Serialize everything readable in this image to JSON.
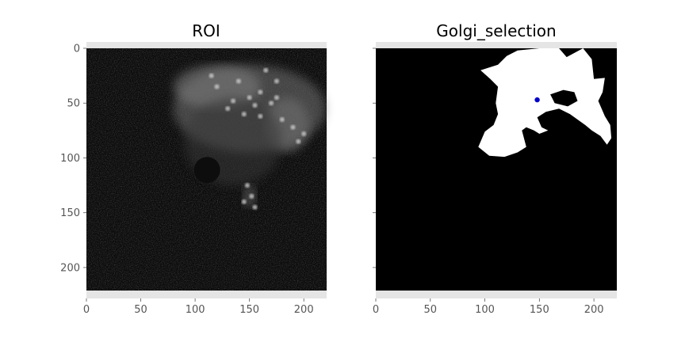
{
  "chart_data": [
    {
      "type": "heatmap",
      "title": "ROI",
      "colormap": "gray",
      "image_size": [
        221,
        221
      ],
      "xlim": [
        0,
        221
      ],
      "ylim": [
        221,
        0
      ],
      "xticks": [
        0,
        50,
        100,
        150,
        200
      ],
      "yticks": [
        0,
        50,
        100,
        150,
        200
      ],
      "dark_spot": {
        "x": 111,
        "y": 111,
        "r": 12
      },
      "bright_regions": [
        {
          "x": 150,
          "y": 55,
          "rx": 70,
          "ry": 40,
          "intensity": 0.45
        },
        {
          "x": 120,
          "y": 35,
          "rx": 40,
          "ry": 20,
          "intensity": 0.5
        },
        {
          "x": 185,
          "y": 70,
          "rx": 20,
          "ry": 25,
          "intensity": 0.45
        },
        {
          "x": 135,
          "y": 85,
          "rx": 45,
          "ry": 40,
          "intensity": 0.22
        },
        {
          "x": 150,
          "y": 135,
          "rx": 6,
          "ry": 10,
          "intensity": 0.45
        }
      ]
    },
    {
      "type": "heatmap",
      "title": "Golgi_selection",
      "colormap": "binary",
      "image_size": [
        221,
        221
      ],
      "xlim": [
        0,
        221
      ],
      "ylim": [
        221,
        0
      ],
      "xticks": [
        0,
        50,
        100,
        150,
        200
      ],
      "yticks": [
        0,
        50,
        100,
        150,
        200
      ],
      "selection_outline": [
        [
          96,
          20
        ],
        [
          112,
          15
        ],
        [
          120,
          7
        ],
        [
          130,
          2
        ],
        [
          150,
          0
        ],
        [
          168,
          0
        ],
        [
          175,
          8
        ],
        [
          190,
          0
        ],
        [
          198,
          10
        ],
        [
          200,
          28
        ],
        [
          210,
          27
        ],
        [
          208,
          40
        ],
        [
          204,
          48
        ],
        [
          210,
          62
        ],
        [
          215,
          70
        ],
        [
          216,
          82
        ],
        [
          212,
          88
        ],
        [
          206,
          80
        ],
        [
          198,
          75
        ],
        [
          192,
          70
        ],
        [
          178,
          60
        ],
        [
          168,
          55
        ],
        [
          156,
          58
        ],
        [
          148,
          63
        ],
        [
          152,
          72
        ],
        [
          158,
          75
        ],
        [
          150,
          78
        ],
        [
          145,
          75
        ],
        [
          138,
          72
        ],
        [
          134,
          75
        ],
        [
          138,
          90
        ],
        [
          130,
          95
        ],
        [
          118,
          99
        ],
        [
          104,
          98
        ],
        [
          94,
          90
        ],
        [
          100,
          76
        ],
        [
          108,
          70
        ],
        [
          112,
          60
        ],
        [
          110,
          50
        ],
        [
          112,
          35
        ],
        [
          105,
          28
        ]
      ],
      "selection_hole": [
        [
          160,
          42
        ],
        [
          172,
          38
        ],
        [
          182,
          40
        ],
        [
          185,
          48
        ],
        [
          176,
          53
        ],
        [
          164,
          50
        ]
      ],
      "marker": {
        "x": 148,
        "y": 47,
        "color": "#0000cc"
      }
    }
  ]
}
